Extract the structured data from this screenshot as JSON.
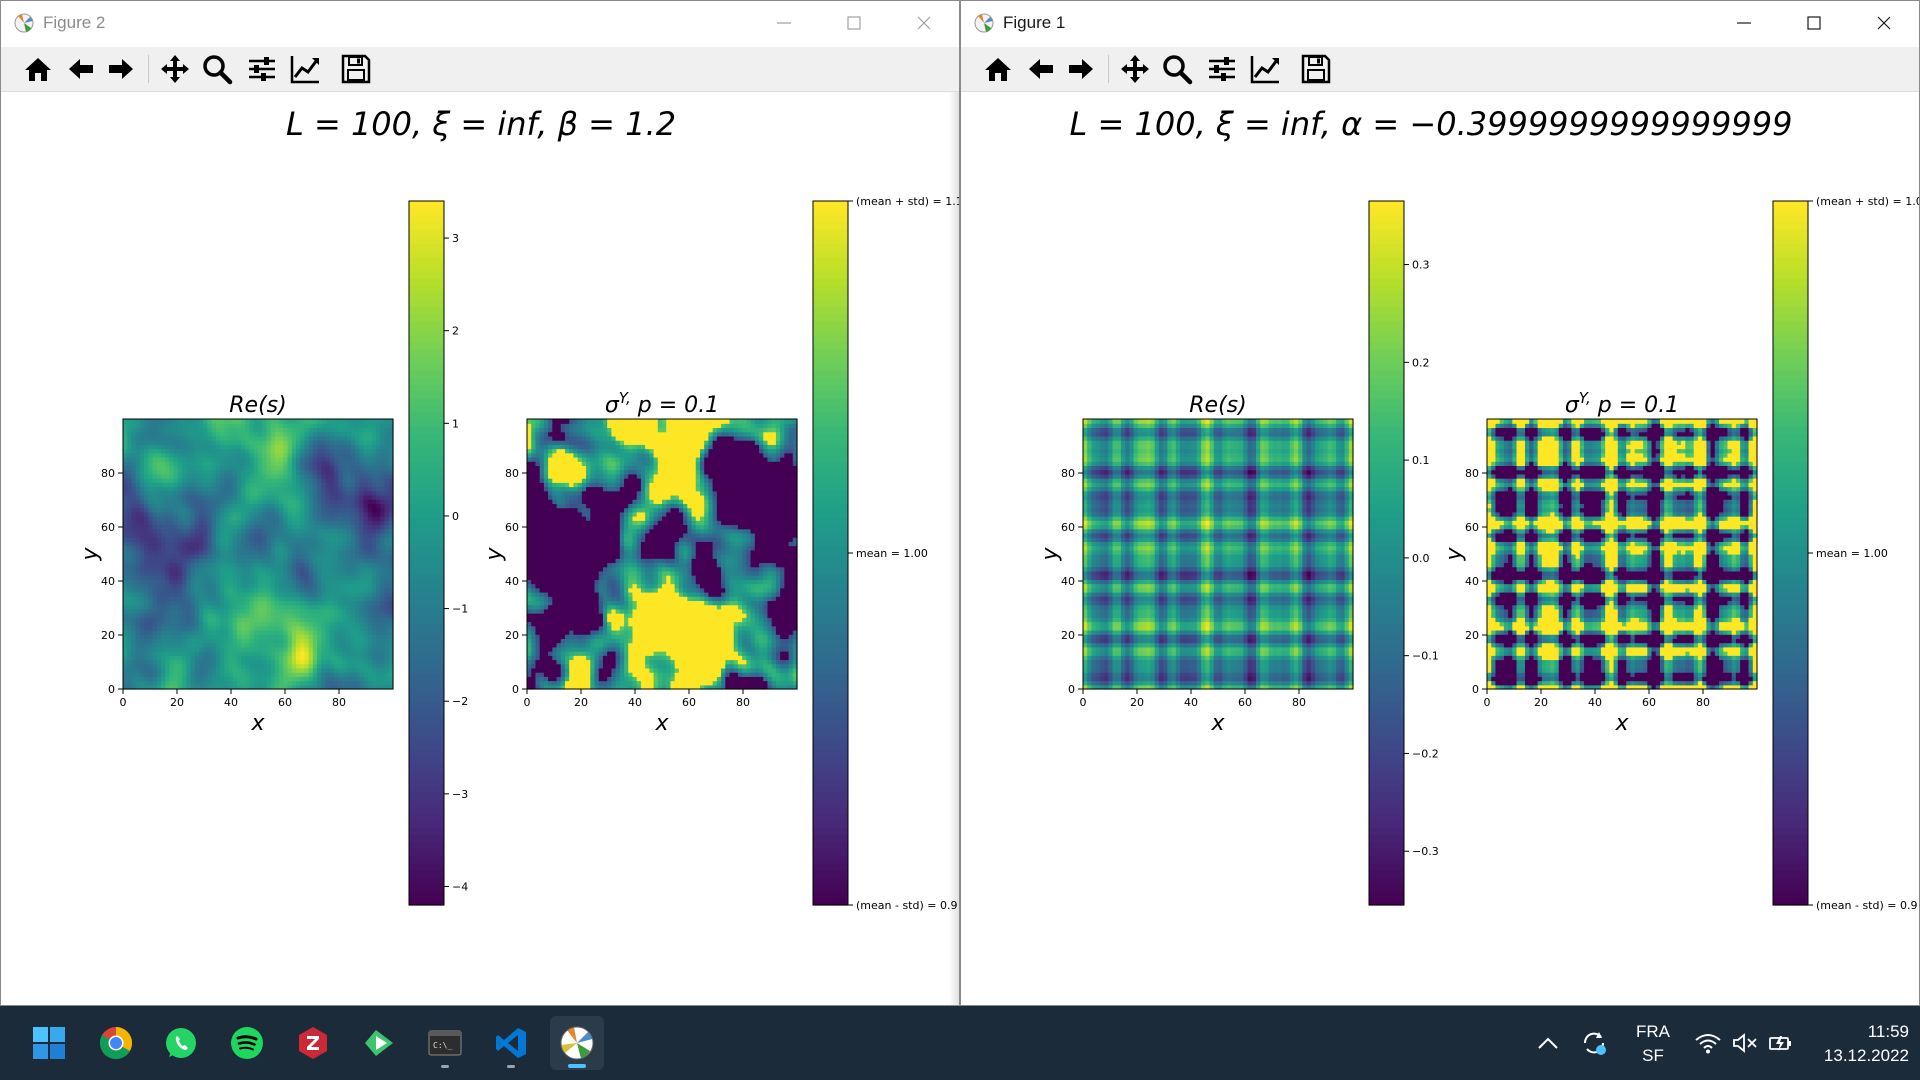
{
  "windows": [
    {
      "id": "figure-2",
      "title": "Figure 2",
      "state": "inactive",
      "suptitle": "L = 100, ξ = inf, β = 1.2",
      "left_panel": {
        "title": "Re(s)",
        "xlabel": "x",
        "ylabel": "y"
      },
      "right_panel": {
        "title": "σ^Y, p = 0.1",
        "xlabel": "x",
        "ylabel": "y"
      },
      "left_colorbar": {
        "range": [
          -4.2,
          3.4
        ],
        "tick_values": [
          3,
          2,
          1,
          0,
          -1,
          -2,
          -3,
          -4
        ],
        "tick_labels": [
          "3",
          "2",
          "1",
          "0",
          "−1",
          "−2",
          "−3",
          "−4"
        ]
      },
      "right_colorbar": {
        "tick_labels": [
          "(mean + std) = 1.1",
          "mean = 1.00",
          "(mean - std) = 0.9"
        ]
      }
    },
    {
      "id": "figure-1",
      "title": "Figure 1",
      "state": "active",
      "suptitle": "L = 100, ξ = inf, α = −0.3999999999999999",
      "left_panel": {
        "title": "Re(s)",
        "xlabel": "x",
        "ylabel": "y"
      },
      "right_panel": {
        "title": "σ^Y, p = 0.1",
        "xlabel": "x",
        "ylabel": "y"
      },
      "left_colorbar": {
        "range": [
          -0.355,
          0.365
        ],
        "tick_values": [
          0.3,
          0.2,
          0.1,
          0.0,
          -0.1,
          -0.2,
          -0.3
        ],
        "tick_labels": [
          "0.3",
          "0.2",
          "0.1",
          "0.0",
          "−0.1",
          "−0.2",
          "−0.3"
        ]
      },
      "right_colorbar": {
        "tick_labels": [
          "(mean + std) = 1.0",
          "mean = 1.00",
          "(mean - std) = 0.9"
        ]
      }
    }
  ],
  "axes": {
    "x_ticks": [
      "0",
      "20",
      "40",
      "60",
      "80"
    ],
    "y_ticks": [
      "0",
      "20",
      "40",
      "60",
      "80"
    ],
    "range": [
      0,
      100
    ]
  },
  "toolbar_icons": [
    "home-icon",
    "back-arrow-icon",
    "forward-arrow-icon",
    "pan-move-icon",
    "zoom-magnifier-icon",
    "configure-subplots-icon",
    "edit-axes-icon",
    "save-floppy-icon"
  ],
  "colormap": "viridis",
  "taskbar": {
    "apps": [
      "windows-start-icon",
      "chrome-icon",
      "whatsapp-icon",
      "spotify-icon",
      "zotero-icon",
      "zoom-ish-app-icon",
      "terminal-icon",
      "vscode-icon",
      "matplotlib-icon"
    ],
    "tray": {
      "lang_top": "FRA",
      "lang_bottom": "SF",
      "time": "11:59",
      "date": "13.12.2022"
    }
  }
}
